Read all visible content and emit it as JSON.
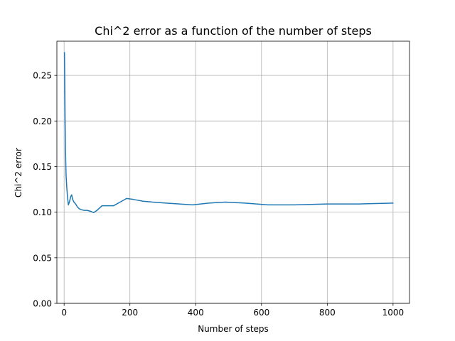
{
  "chart_data": {
    "type": "line",
    "title": "Chi^2 error as a function of the number of steps",
    "xlabel": "Number of steps",
    "ylabel": "Chi^2 error",
    "xlim": [
      -22,
      1050
    ],
    "ylim": [
      0,
      0.2875
    ],
    "xticks": [
      0,
      200,
      400,
      600,
      800,
      1000
    ],
    "xtick_labels": [
      "0",
      "200",
      "400",
      "600",
      "800",
      "1000"
    ],
    "yticks": [
      0,
      0.05,
      0.1,
      0.15,
      0.2,
      0.25
    ],
    "ytick_labels": [
      "0.00",
      "0.05",
      "0.10",
      "0.15",
      "0.20",
      "0.25"
    ],
    "grid": true,
    "series": [
      {
        "color": "#1f77b4",
        "x": [
          1,
          2,
          3,
          4,
          6,
          8,
          10,
          13,
          16,
          20,
          23,
          26,
          30,
          35,
          40,
          45,
          50,
          60,
          70,
          80,
          90,
          100,
          115,
          130,
          150,
          170,
          190,
          210,
          240,
          270,
          310,
          350,
          390,
          440,
          490,
          550,
          620,
          700,
          800,
          900,
          1000
        ],
        "values": [
          0.275,
          0.245,
          0.2,
          0.17,
          0.14,
          0.128,
          0.118,
          0.108,
          0.111,
          0.117,
          0.119,
          0.114,
          0.111,
          0.109,
          0.106,
          0.104,
          0.103,
          0.102,
          0.102,
          0.101,
          0.0995,
          0.102,
          0.107,
          0.107,
          0.107,
          0.111,
          0.115,
          0.114,
          0.112,
          0.111,
          0.11,
          0.109,
          0.108,
          0.11,
          0.111,
          0.11,
          0.108,
          0.108,
          0.109,
          0.109,
          0.11
        ]
      }
    ]
  }
}
